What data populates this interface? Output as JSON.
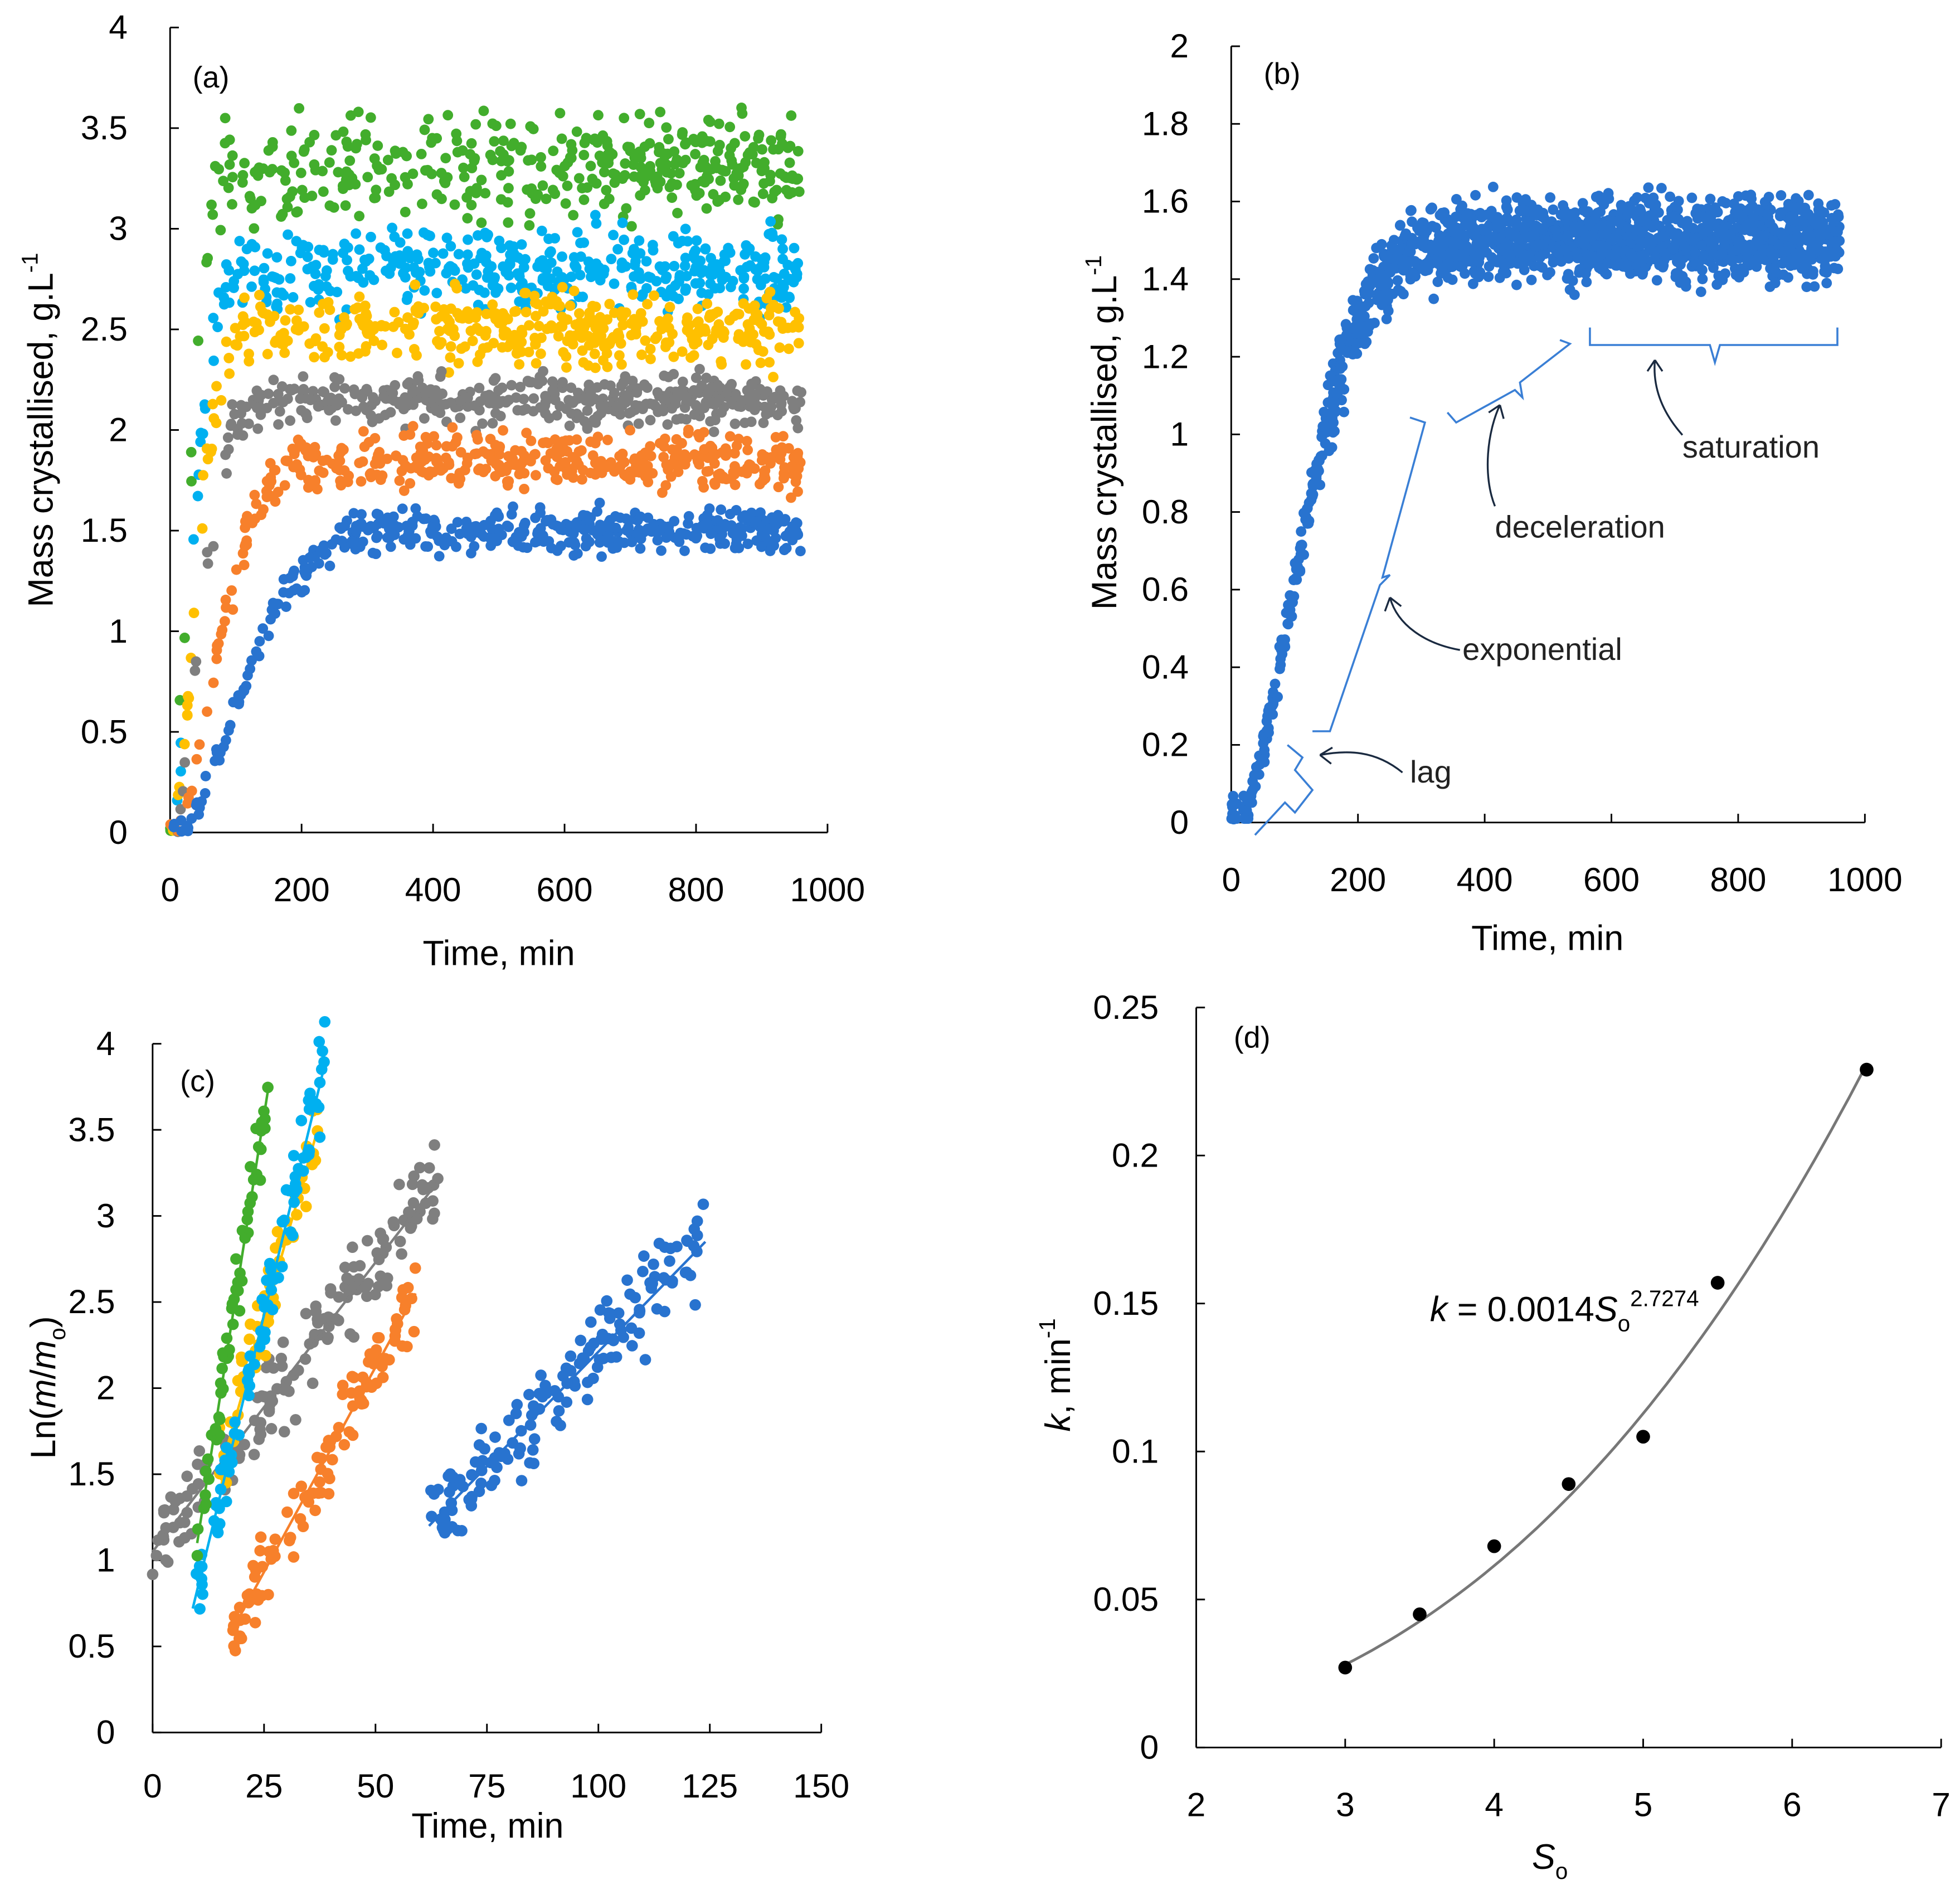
{
  "colors": {
    "blue": "#2873cf",
    "orange": "#f7802b",
    "gray": "#7f7f7f",
    "yellow": "#ffc000",
    "cyan": "#00b0f0",
    "green": "#42ad2c",
    "black": "#000000",
    "fit": "#777777"
  },
  "chart_data": [
    {
      "panel": "(a)",
      "type": "scatter",
      "xlabel": "Time, min",
      "ylabel": "Mass crystallised, g.L",
      "ylabel_sup": "-1",
      "xlim": [
        0,
        1000
      ],
      "ylim": [
        0,
        4
      ],
      "xticks": [
        "0",
        "200",
        "400",
        "600",
        "800",
        "1000"
      ],
      "yticks": [
        "0",
        "0.5",
        "1",
        "1.5",
        "2",
        "2.5",
        "3",
        "3.5",
        "4"
      ],
      "series": [
        {
          "name": "blue",
          "color": "blue",
          "saturation": 1.5,
          "tau": 120,
          "lag": 20,
          "noise": 0.09
        },
        {
          "name": "orange",
          "color": "orange",
          "saturation": 1.85,
          "tau": 75,
          "lag": 15,
          "noise": 0.12
        },
        {
          "name": "gray",
          "color": "gray",
          "saturation": 2.15,
          "tau": 50,
          "lag": 8,
          "noise": 0.11
        },
        {
          "name": "yellow",
          "color": "yellow",
          "saturation": 2.5,
          "tau": 42,
          "lag": 8,
          "noise": 0.15
        },
        {
          "name": "cyan",
          "color": "cyan",
          "saturation": 2.8,
          "tau": 38,
          "lag": 6,
          "noise": 0.17
        },
        {
          "name": "green",
          "color": "green",
          "saturation": 3.3,
          "tau": 32,
          "lag": 5,
          "noise": 0.2
        }
      ]
    },
    {
      "panel": "(b)",
      "type": "scatter",
      "xlabel": "Time, min",
      "ylabel": "Mass crystallised, g.L",
      "ylabel_sup": "-1",
      "xlim": [
        0,
        1000
      ],
      "ylim": [
        0,
        2
      ],
      "xticks": [
        "0",
        "200",
        "400",
        "600",
        "800",
        "1000"
      ],
      "yticks": [
        "0",
        "0.2",
        "0.4",
        "0.6",
        "0.8",
        "1",
        "1.2",
        "1.4",
        "1.6",
        "1.8",
        "2"
      ],
      "series": [
        {
          "name": "blue",
          "color": "blue",
          "saturation": 1.5,
          "tau": 120,
          "lag": 20,
          "noise": 0.09
        }
      ],
      "annotations": [
        "lag",
        "exponential",
        "deceleration",
        "saturation"
      ]
    },
    {
      "panel": "(c)",
      "type": "scatter",
      "xlabel": "Time, min",
      "ylabel_pre": "Ln(",
      "ylabel_m": "m",
      "ylabel_slash": "/",
      "ylabel_m2": "m",
      "ylabel_sub": "o",
      "ylabel_post": ")",
      "xlim": [
        0,
        150
      ],
      "ylim": [
        0,
        4
      ],
      "xticks": [
        "0",
        "25",
        "50",
        "75",
        "100",
        "125",
        "150"
      ],
      "yticks": [
        "0",
        "0.5",
        "1",
        "1.5",
        "2",
        "2.5",
        "3",
        "3.5",
        "4"
      ],
      "series": [
        {
          "name": "gray",
          "color": "gray",
          "fit": [
            [
              0,
              1.05
            ],
            [
              64,
              3.2
            ]
          ],
          "noise": 0.15
        },
        {
          "name": "orange",
          "color": "orange",
          "fit": [
            [
              18,
              0.6
            ],
            [
              59,
              2.55
            ]
          ],
          "noise": 0.15
        },
        {
          "name": "blue",
          "color": "blue",
          "fit": [
            [
              62,
              1.2
            ],
            [
              124,
              2.85
            ]
          ],
          "noise": 0.15
        },
        {
          "name": "yellow",
          "color": "yellow",
          "fit": [
            [
              15,
              1.5
            ],
            [
              37,
              3.5
            ]
          ],
          "noise": 0.12
        },
        {
          "name": "cyan",
          "color": "cyan",
          "fit": [
            [
              9,
              0.72
            ],
            [
              39,
              3.92
            ]
          ],
          "noise": 0.14
        },
        {
          "name": "green",
          "color": "green",
          "fit": [
            [
              10,
              1.1
            ],
            [
              26,
              3.75
            ]
          ],
          "noise": 0.12
        }
      ]
    },
    {
      "panel": "(d)",
      "type": "scatter",
      "xlabel": "S",
      "xlabel_sub": "o",
      "ylabel_k": "k",
      "ylabel": ", min",
      "ylabel_sup": "-1",
      "xlim": [
        2,
        7
      ],
      "ylim": [
        0,
        0.25
      ],
      "xticks": [
        "2",
        "3",
        "4",
        "5",
        "6",
        "7"
      ],
      "yticks": [
        "0",
        "0.05",
        "0.1",
        "0.15",
        "0.2",
        "0.25"
      ],
      "points": [
        [
          3,
          0.027
        ],
        [
          3.5,
          0.045
        ],
        [
          4,
          0.068
        ],
        [
          4.5,
          0.089
        ],
        [
          5,
          0.105
        ],
        [
          5.5,
          0.157
        ],
        [
          6.5,
          0.229
        ]
      ],
      "fit": {
        "a": 0.0014,
        "b": 2.7274,
        "range": [
          3,
          6.5
        ]
      },
      "equation": {
        "k": "k",
        "eq": " = 0.0014",
        "S": "S",
        "sub": "o",
        "sup": "2.7274"
      }
    }
  ]
}
